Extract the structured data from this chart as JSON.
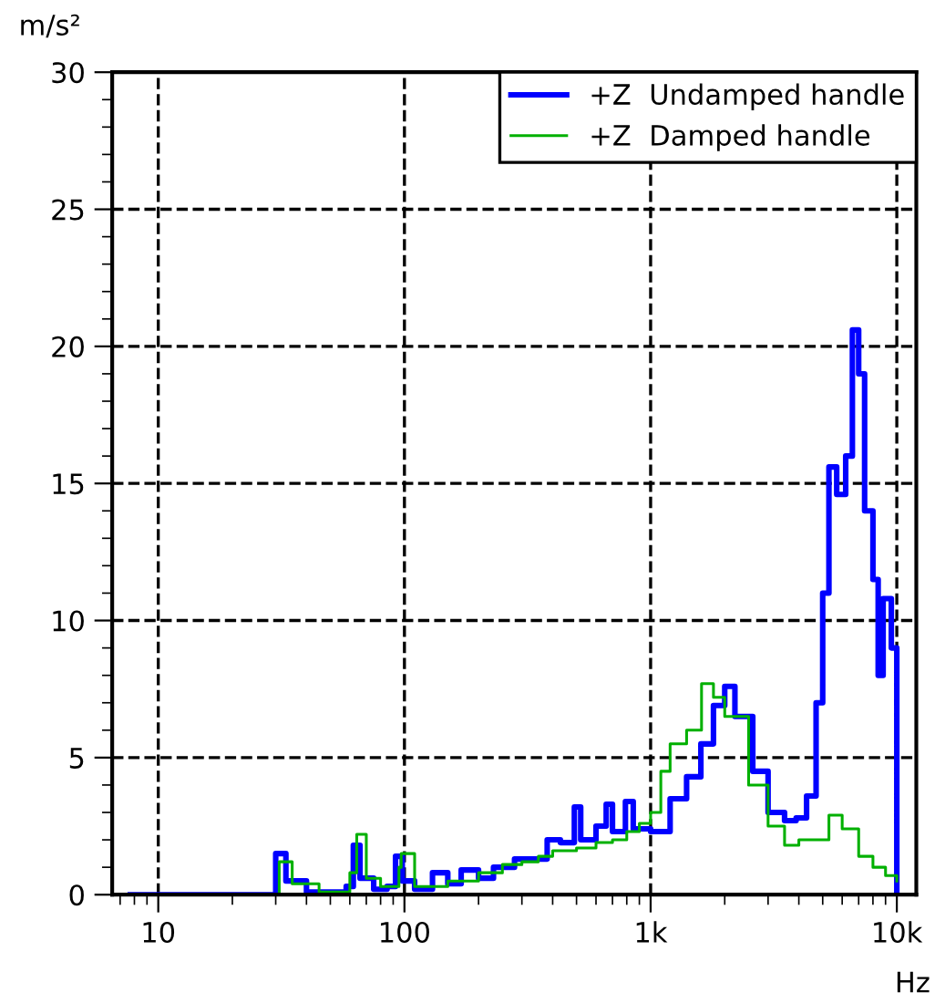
{
  "chart_data": {
    "type": "step",
    "xlabel": "Hz",
    "ylabel": "m/s²",
    "log": "x",
    "grid": true,
    "legend": "top right",
    "xlim": [
      6.5,
      12000
    ],
    "xticks": [
      10,
      100,
      {
        "value": 1000,
        "label": "1k"
      },
      {
        "value": 10000,
        "label": "10k"
      }
    ],
    "ylim": [
      0,
      30
    ],
    "yticks": [
      0,
      5,
      10,
      15,
      20,
      25,
      30
    ],
    "series": [
      {
        "name": "+Z  Undamped handle",
        "color": "#0000ff",
        "x": [
          7.7,
          28,
          30,
          33,
          40,
          50,
          58,
          62,
          66,
          75,
          85,
          92,
          98,
          110,
          130,
          150,
          170,
          200,
          230,
          280,
          330,
          380,
          430,
          490,
          520,
          600,
          660,
          700,
          790,
          850,
          1000,
          1200,
          1400,
          1600,
          1800,
          2000,
          2200,
          2600,
          3000,
          3500,
          3900,
          4300,
          4700,
          5000,
          5300,
          5700,
          6200,
          6600,
          7000,
          7400,
          8000,
          8400,
          8800,
          9500,
          10000,
          10000
        ],
        "values": [
          0,
          0,
          1.5,
          0.5,
          0.1,
          0.1,
          0.3,
          1.8,
          0.6,
          0.2,
          0.3,
          1.4,
          0.5,
          0.2,
          0.8,
          0.4,
          0.9,
          0.6,
          1.0,
          1.3,
          1.3,
          2.0,
          1.9,
          3.2,
          2.0,
          2.5,
          3.3,
          2.3,
          3.4,
          2.4,
          2.3,
          3.5,
          4.3,
          5.5,
          6.9,
          7.6,
          6.5,
          4.5,
          3.0,
          2.7,
          2.8,
          3.6,
          7.0,
          11.0,
          15.6,
          14.6,
          16.0,
          20.6,
          19.0,
          14.0,
          11.5,
          8.0,
          10.8,
          9.0,
          8.5,
          0
        ]
      },
      {
        "name": "+Z  Damped handle",
        "color": "#00b000",
        "x": [
          7.7,
          28,
          31,
          35,
          45,
          60,
          64,
          70,
          80,
          95,
          97,
          110,
          150,
          200,
          250,
          300,
          350,
          400,
          500,
          600,
          700,
          800,
          900,
          1000,
          1100,
          1200,
          1400,
          1610,
          1800,
          2000,
          2500,
          3000,
          3500,
          4000,
          5300,
          6000,
          7000,
          8000,
          9000,
          10000
        ],
        "values": [
          0,
          0,
          1.2,
          0.4,
          0.1,
          0.8,
          2.2,
          0.6,
          0.3,
          1.0,
          1.5,
          0.3,
          0.5,
          0.8,
          1.1,
          1.2,
          1.4,
          1.6,
          1.7,
          1.9,
          2.0,
          2.3,
          2.6,
          3.0,
          4.5,
          5.5,
          6.0,
          7.7,
          7.2,
          6.5,
          4.0,
          2.5,
          1.8,
          2.0,
          2.9,
          2.4,
          1.4,
          1.0,
          0.7,
          0.5
        ]
      }
    ]
  }
}
